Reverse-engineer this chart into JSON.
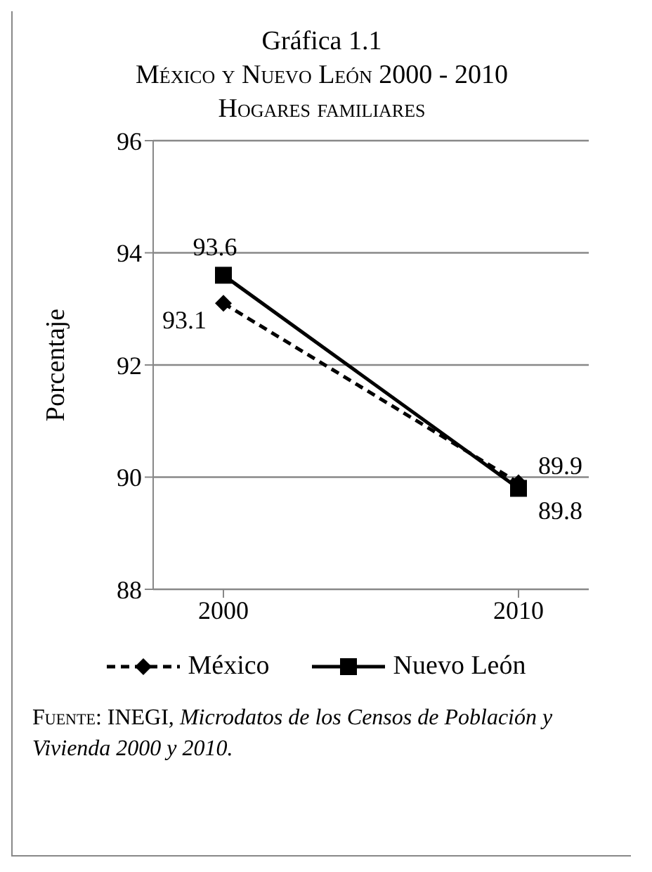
{
  "chart_data": {
    "type": "line",
    "title": "Gráfica 1.1",
    "subtitle": "México y Nuevo León 2000 - 2010\nHogares familiares",
    "ylabel": "Porcentaje",
    "categories": [
      "2000",
      "2010"
    ],
    "series": [
      {
        "name": "México",
        "color": "#000000",
        "values": [
          93.1,
          89.9
        ],
        "marker": "diamond",
        "line_style": "dashed"
      },
      {
        "name": "Nuevo León",
        "color": "#000000",
        "values": [
          93.6,
          89.8
        ],
        "marker": "square",
        "line_style": "solid"
      }
    ],
    "ylim": [
      88,
      96
    ],
    "yticks": [
      88,
      90,
      92,
      94,
      96
    ],
    "grid": "y",
    "legend": "bottom",
    "data_labels": true,
    "annotations": [
      "Fuente: INEGI,",
      "Microdatos de los Censos de Población y Vivienda 2000 y 2010."
    ]
  }
}
